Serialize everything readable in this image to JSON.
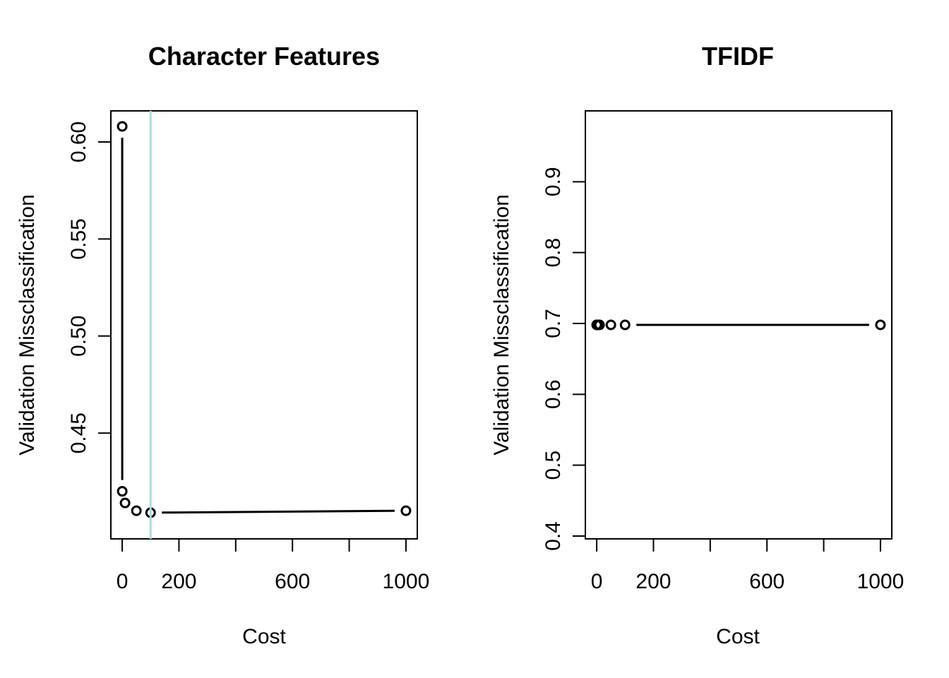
{
  "chart_data": [
    {
      "type": "line",
      "title": "Character Features",
      "xlabel": "Cost",
      "ylabel": "Validation Missclassification",
      "x_ticks": [
        0,
        200,
        600,
        1000
      ],
      "x_minor_ticks": [
        400,
        800
      ],
      "y_ticks": [
        "0.45",
        "0.50",
        "0.55",
        "0.60"
      ],
      "xlim": [
        -40,
        1040
      ],
      "ylim": [
        0.3955,
        0.616
      ],
      "grid": false,
      "series": [
        {
          "x": [
            0.01,
            0.1,
            10,
            50,
            100,
            1000
          ],
          "y": [
            0.608,
            0.42,
            0.414,
            0.41,
            0.409,
            0.41
          ],
          "style": "both",
          "color": "#000000"
        }
      ],
      "vline": {
        "x": 100,
        "color": "#add8e6"
      }
    },
    {
      "type": "line",
      "title": "TFIDF",
      "xlabel": "Cost",
      "ylabel": "Validation Missclassification",
      "x_ticks": [
        0,
        200,
        600,
        1000
      ],
      "x_minor_ticks": [
        400,
        800
      ],
      "y_ticks": [
        "0.4",
        "0.5",
        "0.6",
        "0.7",
        "0.8",
        "0.9"
      ],
      "xlim": [
        -40,
        1040
      ],
      "ylim": [
        0.396,
        1.0
      ],
      "grid": false,
      "series": [
        {
          "x": [
            0.01,
            0.1,
            1,
            5,
            10,
            50,
            100,
            1000
          ],
          "y": [
            0.698,
            0.698,
            0.698,
            0.698,
            0.698,
            0.698,
            0.698,
            0.698
          ],
          "style": "both",
          "color": "#000000"
        }
      ]
    }
  ]
}
